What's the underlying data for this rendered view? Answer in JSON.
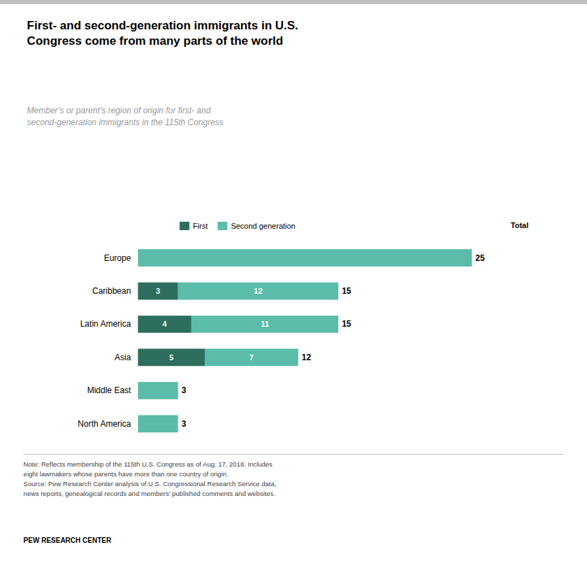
{
  "chart_data": {
    "type": "bar",
    "orientation": "horizontal",
    "stacked": true,
    "title": "First- and second-generation immigrants in U.S.\nCongress come from many parts of the world",
    "subtitle": "Member’s or parent’s region of origin for first- and\nsecond-generation immigrants in the 115th Congress",
    "categories": [
      "Europe",
      "Caribbean",
      "Latin America",
      "Asia",
      "Middle East",
      "North America"
    ],
    "series": [
      {
        "name": "First",
        "color": "#2d6e5e",
        "values": [
          0,
          3,
          4,
          5,
          0,
          0
        ],
        "value_labels": [
          null,
          "3",
          "4",
          "5",
          null,
          null
        ]
      },
      {
        "name": "Second generation",
        "color": "#5bbcaa",
        "values": [
          25,
          12,
          11,
          7,
          3,
          3
        ],
        "value_labels": [
          null,
          "12",
          "11",
          "7",
          null,
          null
        ]
      }
    ],
    "totals": [
      25,
      15,
      15,
      12,
      3,
      3
    ],
    "total_label": "Total",
    "xlim": [
      0,
      29
    ],
    "data_labels": true,
    "tick_labels": "y",
    "grid": false,
    "legend": "top",
    "note": [
      "Note: Reflects membership of the 115th U.S. Congress as of Aug. 17, 2018. Includes",
      "eight lawmakers whose parents have more than one country of origin.",
      "Source: Pew Research Center analysis of U.S. Congressional Research Service data,",
      "news reports, genealogical records and members’ published comments and websites."
    ],
    "footer": "PEW RESEARCH CENTER"
  }
}
